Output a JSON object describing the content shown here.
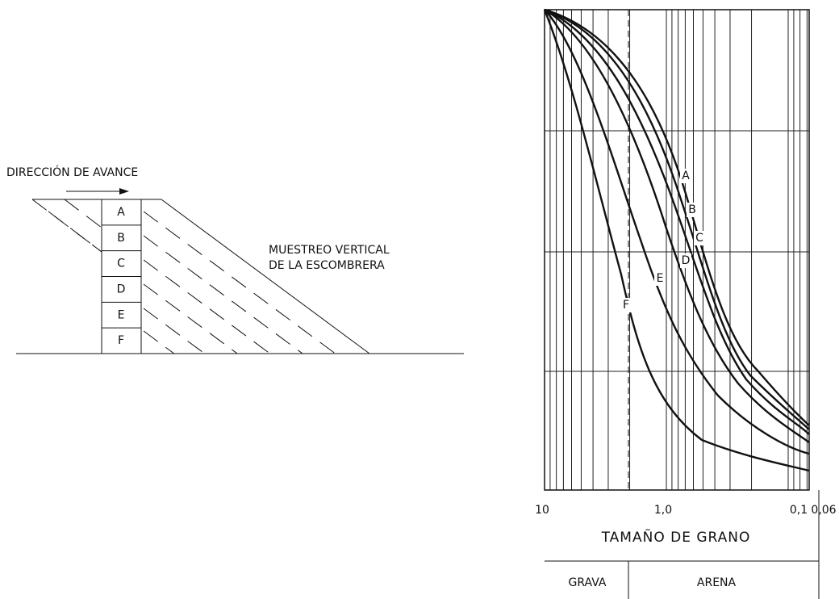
{
  "left": {
    "direction": "DIRECCIÓN DE AVANCE",
    "layers": [
      "A",
      "B",
      "C",
      "D",
      "E",
      "F"
    ],
    "note_line1": "MUESTREO VERTICAL",
    "note_line2": "DE LA ESCOMBRERA"
  },
  "right": {
    "x_labels": [
      "10",
      "1,0",
      "0,1",
      "0,06"
    ],
    "axis_title": "TAMAÑO DE GRANO",
    "classes": [
      "GRAVA",
      "ARENA"
    ],
    "curve_labels": [
      "A",
      "B",
      "C",
      "D",
      "E",
      "F"
    ]
  }
}
